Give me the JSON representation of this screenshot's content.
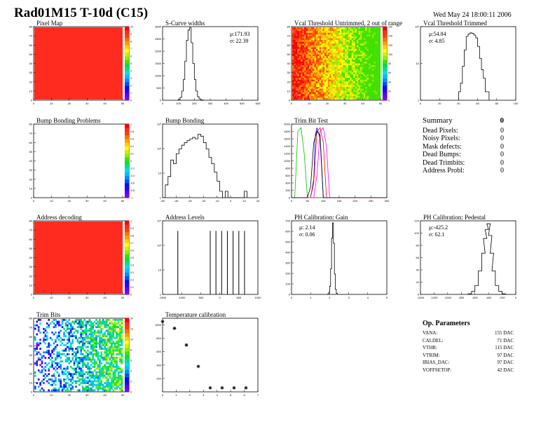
{
  "header": {
    "title": "Rad01M15 T-10d (C15)",
    "date": "Wed May 24 18:00:11 2006"
  },
  "colors": {
    "map_red": "#ff2b1e",
    "hist_line": "#000000"
  },
  "panels": {
    "pixel_map": {
      "title": "Pixel Map",
      "xticks": [
        "0",
        "10",
        "20",
        "30",
        "40",
        "50"
      ],
      "yticks": [
        "0",
        "10",
        "20",
        "30",
        "40",
        "50",
        "60",
        "70",
        "80"
      ],
      "zticks": [
        "0",
        "1",
        "2",
        "3",
        "4",
        "5",
        "6",
        "7",
        "8",
        "9",
        "10"
      ]
    },
    "scurve": {
      "title": "S-Curve widths",
      "mu": "μ:171.93",
      "sigma": "σ: 22.39",
      "xticks": [
        "0",
        "100",
        "200",
        "300",
        "400",
        "500",
        "600"
      ],
      "yticks": [
        "0",
        "500",
        "1000",
        "1500",
        "2000",
        "2500",
        "3000"
      ]
    },
    "vcal_untrimmed": {
      "title": "Vcal Threshold Untrimmed, 2 out of range",
      "xticks": [
        "0",
        "10",
        "20",
        "30",
        "40",
        "50"
      ],
      "yticks": [
        "0",
        "10",
        "20",
        "30",
        "40",
        "50",
        "60",
        "70",
        "80"
      ],
      "zticks": [
        "0",
        "20",
        "40",
        "60",
        "80",
        "100",
        "120",
        "140",
        "160"
      ]
    },
    "vcal_trimmed": {
      "title": "Vcal Threshold Trimmed",
      "mu": "μ:54.84",
      "sigma": "σ: 4.85",
      "xticks": [
        "0",
        "20",
        "40",
        "60",
        "80",
        "100"
      ],
      "yticks": [
        "1",
        "10",
        "10²"
      ]
    },
    "bump_problems": {
      "title": "Bump Bonding Problems",
      "xticks": [
        "0",
        "10",
        "20",
        "30",
        "40",
        "50"
      ],
      "yticks": [
        "0",
        "10",
        "20",
        "30",
        "40",
        "50",
        "60",
        "70",
        "80"
      ],
      "zticks": [
        "-1",
        "-0.8",
        "-0.6",
        "-0.4",
        "-0.2",
        "0",
        "0.2",
        "0.4",
        "0.6",
        "0.8",
        "1"
      ]
    },
    "bump": {
      "title": "Bump Bonding",
      "xticks": [
        "-50",
        "-40",
        "-30",
        "-20",
        "-10",
        "0",
        "10",
        "20"
      ],
      "yticks": [
        "1",
        "10",
        "10²",
        "10³"
      ]
    },
    "trimbit": {
      "title": "Trim Bit Test",
      "xticks": [
        "0",
        "50",
        "100",
        "150",
        "200",
        "250",
        "300"
      ],
      "yticks": [
        "0",
        "200",
        "400",
        "600",
        "800",
        "1000",
        "1200",
        "1400",
        "1600",
        "1800",
        "2000"
      ]
    },
    "address_decoding": {
      "title": "Address decoding",
      "xticks": [
        "0",
        "10",
        "20",
        "30",
        "40",
        "50"
      ],
      "yticks": [
        "0",
        "10",
        "20",
        "30",
        "40",
        "50",
        "60",
        "70",
        "80"
      ],
      "zticks": [
        "0",
        "0.1",
        "0.2",
        "0.3",
        "0.4",
        "0.5",
        "0.6",
        "0.7",
        "0.8",
        "0.9",
        "1"
      ]
    },
    "address_levels": {
      "title": "Address Levels",
      "xticks": [
        "-1500",
        "-1000",
        "-500",
        "0",
        "500",
        "1000"
      ],
      "yticks": [
        "1",
        "10",
        "10²",
        "10³"
      ]
    },
    "ph_gain": {
      "title": "PH Calibration: Gain",
      "mu": "μ: 2.14",
      "sigma": "σ: 0.06",
      "xticks": [
        "0",
        "1",
        "2",
        "3",
        "4",
        "5"
      ],
      "yticks": [
        "0",
        "100",
        "200",
        "300",
        "400",
        "500",
        "600",
        "700"
      ]
    },
    "ph_pedestal": {
      "title": "PH Calibration: Pedestal",
      "mu": "μ:-425.2",
      "sigma": "σ: 62.1",
      "xticks": [
        "-1400",
        "-1200",
        "-1000",
        "-800",
        "-600",
        "-400",
        "-200",
        "0"
      ],
      "yticks": [
        "0",
        "20",
        "40",
        "60",
        "80",
        "100",
        "120"
      ]
    },
    "trim_bits": {
      "title": "Trim Bits",
      "xticks": [
        "0",
        "10",
        "20",
        "30",
        "40",
        "50"
      ],
      "yticks": [
        "0",
        "10",
        "20",
        "30",
        "40",
        "50",
        "60",
        "70",
        "80"
      ],
      "zticks": [
        "0",
        "2",
        "4",
        "6",
        "8",
        "10",
        "12",
        "14"
      ]
    },
    "temperature": {
      "title": "Temperature calibration",
      "xticks": [
        "0",
        "1",
        "2",
        "3",
        "4",
        "5",
        "6",
        "7"
      ],
      "yticks": [
        "200",
        "400",
        "600",
        "800",
        "1000"
      ]
    }
  },
  "summary": {
    "header_label": "Summary",
    "header_value": "0",
    "rows": [
      {
        "label": "Dead Pixels:",
        "value": "0"
      },
      {
        "label": "Noisy Pixels:",
        "value": "0"
      },
      {
        "label": "Mask defects:",
        "value": "0"
      },
      {
        "label": "Dead Bumps:",
        "value": "0"
      },
      {
        "label": "Dead Trimbits:",
        "value": "0"
      },
      {
        "label": "Address Probl:",
        "value": "0"
      }
    ]
  },
  "op_params": {
    "title": "Op. Parameters",
    "rows": [
      {
        "label": "VANA:",
        "value": "155 DAC"
      },
      {
        "label": "CALDEL:",
        "value": "71 DAC"
      },
      {
        "label": "VTHR:",
        "value": "115 DAC"
      },
      {
        "label": "VTRIM:",
        "value": "97 DAC"
      },
      {
        "label": "IBIAS_DAC:",
        "value": "97 DAC"
      },
      {
        "label": "VOFFSETOP:",
        "value": "42 DAC"
      }
    ]
  },
  "chart_data": [
    {
      "type": "heatmap",
      "title": "Pixel Map",
      "xlim": [
        0,
        52
      ],
      "ylim": [
        0,
        80
      ],
      "zlim": [
        0,
        10
      ],
      "uniform_value": 10
    },
    {
      "type": "bar",
      "title": "S-Curve widths",
      "xlim": [
        0,
        600
      ],
      "ylim": [
        0,
        3200
      ],
      "x": [
        100,
        110,
        120,
        130,
        140,
        150,
        160,
        170,
        180,
        190,
        200,
        210,
        220,
        230,
        240,
        250
      ],
      "values": [
        30,
        120,
        400,
        900,
        1700,
        2600,
        3050,
        3150,
        2500,
        1600,
        900,
        400,
        150,
        60,
        20,
        5
      ]
    },
    {
      "type": "heatmap",
      "title": "Vcal Threshold Untrimmed, 2 out of range",
      "xlim": [
        0,
        52
      ],
      "ylim": [
        0,
        80
      ],
      "zlim": [
        0,
        160
      ],
      "trend": "high values (red) at low column, decreasing toward yellow at high column"
    },
    {
      "type": "bar",
      "title": "Vcal Threshold Trimmed",
      "xlim": [
        0,
        100
      ],
      "ylim_log": [
        0.5,
        200
      ],
      "x": [
        40,
        42,
        44,
        46,
        48,
        50,
        52,
        54,
        56,
        58,
        60,
        62,
        64,
        66,
        68,
        70
      ],
      "values": [
        1,
        2,
        8,
        30,
        90,
        110,
        120,
        115,
        100,
        80,
        40,
        15,
        6,
        3,
        1,
        1
      ]
    },
    {
      "type": "heatmap",
      "title": "Bump Bonding Problems",
      "xlim": [
        0,
        52
      ],
      "ylim": [
        0,
        80
      ],
      "zlim": [
        -1,
        1
      ],
      "uniform_value": 0
    },
    {
      "type": "bar",
      "title": "Bump Bonding",
      "xlim": [
        -50,
        20
      ],
      "ylim_log": [
        0.5,
        1500
      ],
      "x": [
        -48,
        -46,
        -44,
        -42,
        -40,
        -38,
        -36,
        -34,
        -32,
        -30,
        -28,
        -26,
        -24,
        -22,
        -20,
        -18,
        -16,
        -14,
        -12,
        -10,
        -8,
        -6,
        -4,
        -2,
        0,
        2,
        4,
        6,
        8,
        10
      ],
      "values": [
        2,
        5,
        30,
        20,
        60,
        100,
        150,
        200,
        250,
        300,
        350,
        300,
        500,
        400,
        200,
        100,
        40,
        20,
        8,
        3,
        1,
        0,
        1,
        0,
        0,
        0,
        0,
        0,
        0,
        1
      ]
    },
    {
      "type": "line",
      "title": "Trim Bit Test",
      "xlim": [
        0,
        300
      ],
      "ylim": [
        0,
        2000
      ],
      "series": [
        {
          "color": "#00c000",
          "x": [
            0,
            10,
            20,
            30,
            40,
            50,
            60,
            70,
            80,
            300
          ],
          "values": [
            0,
            0,
            1800,
            1900,
            1200,
            0,
            0,
            0,
            0,
            0
          ]
        },
        {
          "color": "#0000ff",
          "x": [
            0,
            60,
            70,
            75,
            80,
            90,
            100,
            300
          ],
          "values": [
            0,
            0,
            500,
            1700,
            1900,
            1600,
            0,
            0
          ]
        },
        {
          "color": "#ff0000",
          "x": [
            0,
            60,
            70,
            80,
            90,
            100,
            110,
            300
          ],
          "values": [
            0,
            0,
            400,
            1800,
            1900,
            1500,
            0,
            0
          ]
        },
        {
          "color": "#ff00ff",
          "x": [
            0,
            70,
            80,
            90,
            100,
            110,
            120,
            300
          ],
          "values": [
            0,
            0,
            600,
            1800,
            1900,
            1400,
            0,
            0
          ]
        },
        {
          "color": "#000000",
          "x": [
            0,
            50,
            60,
            70,
            80,
            90,
            100,
            300
          ],
          "values": [
            0,
            0,
            300,
            1500,
            1800,
            1700,
            0,
            0
          ]
        }
      ]
    },
    {
      "type": "heatmap",
      "title": "Address decoding",
      "xlim": [
        0,
        52
      ],
      "ylim": [
        0,
        80
      ],
      "zlim": [
        0,
        1
      ],
      "uniform_value": 1
    },
    {
      "type": "bar",
      "title": "Address Levels",
      "xlim": [
        -1500,
        1000
      ],
      "ylim_log": [
        0.5,
        1500
      ],
      "x": [
        -1100,
        -250,
        -100,
        50,
        200,
        350,
        500,
        650
      ],
      "values": [
        500,
        500,
        500,
        500,
        500,
        500,
        500,
        500
      ]
    },
    {
      "type": "bar",
      "title": "PH Calibration: Gain",
      "xlim": [
        0,
        5
      ],
      "ylim": [
        0,
        720
      ],
      "x": [
        1.9,
        1.95,
        2.0,
        2.05,
        2.1,
        2.15,
        2.2,
        2.25,
        2.3,
        2.35
      ],
      "values": [
        5,
        20,
        80,
        250,
        550,
        700,
        500,
        200,
        50,
        10
      ]
    },
    {
      "type": "bar",
      "title": "PH Calibration: Pedestal",
      "xlim": [
        -1400,
        0
      ],
      "ylim": [
        0,
        125
      ],
      "x": [
        -700,
        -650,
        -600,
        -550,
        -500,
        -475,
        -450,
        -425,
        -400,
        -375,
        -350,
        -300,
        -250,
        -200
      ],
      "values": [
        1,
        5,
        15,
        40,
        70,
        95,
        110,
        120,
        100,
        70,
        40,
        15,
        5,
        1
      ]
    },
    {
      "type": "heatmap",
      "title": "Trim Bits",
      "xlim": [
        0,
        52
      ],
      "ylim": [
        0,
        80
      ],
      "zlim": [
        0,
        15
      ],
      "trend": "sparse, values increase toward high column"
    },
    {
      "type": "scatter",
      "title": "Temperature calibration",
      "xlim": [
        0,
        8
      ],
      "ylim": [
        0,
        1100
      ],
      "x": [
        0,
        1,
        2,
        3,
        4,
        5,
        6,
        7
      ],
      "values": [
        1050,
        950,
        700,
        380,
        60,
        60,
        60,
        60
      ]
    }
  ]
}
